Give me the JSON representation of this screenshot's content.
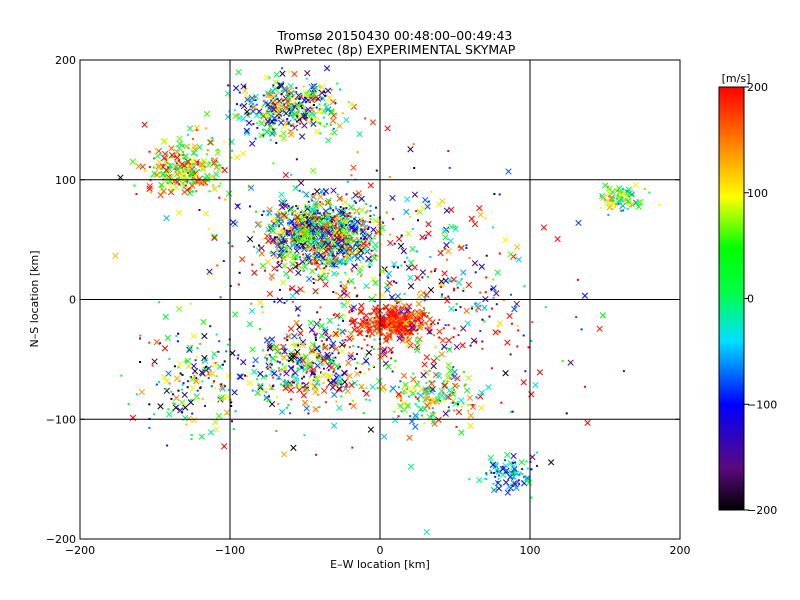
{
  "chart_data": {
    "type": "scatter",
    "title": "Tromsø 20150430 00:48:00–00:49:43",
    "subtitle": "RwPretec (8p) EXPERIMENTAL SKYMAP",
    "xlabel": "E–W location [km]",
    "ylabel": "N–S location [km]",
    "xlim": [
      -200,
      200
    ],
    "ylim": [
      -200,
      200
    ],
    "xticks": [
      -200,
      -100,
      0,
      100,
      200
    ],
    "yticks": [
      -200,
      -100,
      0,
      100,
      200
    ],
    "x_tick_labels": [
      "−200",
      "−100",
      "0",
      "100",
      "200"
    ],
    "y_tick_labels": [
      "−200",
      "−100",
      "0",
      "100",
      "200"
    ],
    "grid": true,
    "markers": [
      "x",
      "dot"
    ],
    "colorbar": {
      "label": "[m/s]",
      "range": [
        -200,
        200
      ],
      "ticks": [
        200,
        100,
        0,
        -100,
        -200
      ],
      "tick_labels": [
        "200",
        "100",
        "0",
        "−100",
        "−200"
      ],
      "colormap": "rainbow (black → purple → blue → cyan → green → yellow → red)"
    },
    "clusters": [
      {
        "cx": -40,
        "cy": 55,
        "sx": 35,
        "sy": 30,
        "n": 900,
        "vmean": 0,
        "vspread": 200
      },
      {
        "cx": -60,
        "cy": 160,
        "sx": 35,
        "sy": 25,
        "n": 380,
        "vmean": -10,
        "vspread": 200
      },
      {
        "cx": 10,
        "cy": -20,
        "sx": 25,
        "sy": 14,
        "n": 360,
        "vmean": 185,
        "vspread": 45
      },
      {
        "cx": -130,
        "cy": 110,
        "sx": 28,
        "sy": 25,
        "n": 250,
        "vmean": 110,
        "vspread": 130
      },
      {
        "cx": 160,
        "cy": 85,
        "sx": 15,
        "sy": 10,
        "n": 90,
        "vmean": 40,
        "vspread": 120
      },
      {
        "cx": 85,
        "cy": -145,
        "sx": 22,
        "sy": 14,
        "n": 90,
        "vmean": -60,
        "vspread": 80
      },
      {
        "cx": -50,
        "cy": -60,
        "sx": 40,
        "sy": 30,
        "n": 300,
        "vmean": 0,
        "vspread": 210
      },
      {
        "cx": -125,
        "cy": -70,
        "sx": 30,
        "sy": 45,
        "n": 150,
        "vmean": -50,
        "vspread": 220
      },
      {
        "cx": 35,
        "cy": -80,
        "sx": 30,
        "sy": 25,
        "n": 140,
        "vmean": 70,
        "vspread": 150
      },
      {
        "cx": 0,
        "cy": 0,
        "sx": 120,
        "sy": 110,
        "n": 650,
        "vmean": 50,
        "vspread": 260
      }
    ]
  }
}
